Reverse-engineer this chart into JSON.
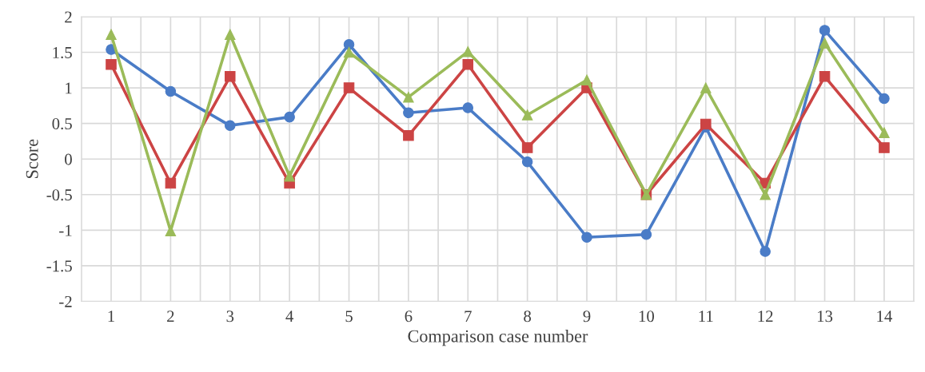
{
  "chart_data": {
    "type": "line",
    "xlabel": "Comparison case number",
    "ylabel": "Score",
    "categories": [
      "1",
      "2",
      "3",
      "4",
      "5",
      "6",
      "7",
      "8",
      "9",
      "10",
      "11",
      "12",
      "13",
      "14"
    ],
    "series": [
      {
        "color": "#4a7cc7",
        "marker": "circle",
        "values": [
          1.54,
          0.95,
          0.47,
          0.59,
          1.61,
          0.65,
          0.72,
          -0.04,
          -1.1,
          -1.06,
          0.45,
          -1.3,
          1.81,
          0.85
        ]
      },
      {
        "color": "#cc4444",
        "marker": "square",
        "values": [
          1.33,
          -0.34,
          1.16,
          -0.34,
          1.0,
          0.33,
          1.33,
          0.16,
          1.0,
          -0.5,
          0.49,
          -0.34,
          1.16,
          0.16
        ]
      },
      {
        "color": "#9bbb59",
        "marker": "triangle",
        "values": [
          1.75,
          -1.01,
          1.75,
          -0.24,
          1.5,
          0.87,
          1.51,
          0.62,
          1.11,
          -0.5,
          1.0,
          -0.5,
          1.63,
          0.37
        ]
      }
    ],
    "ylim": [
      -2,
      2
    ],
    "yticks": [
      -2,
      -1.5,
      -1,
      -0.5,
      0,
      0.5,
      1,
      1.5,
      2
    ],
    "grid": true,
    "legend": false
  }
}
